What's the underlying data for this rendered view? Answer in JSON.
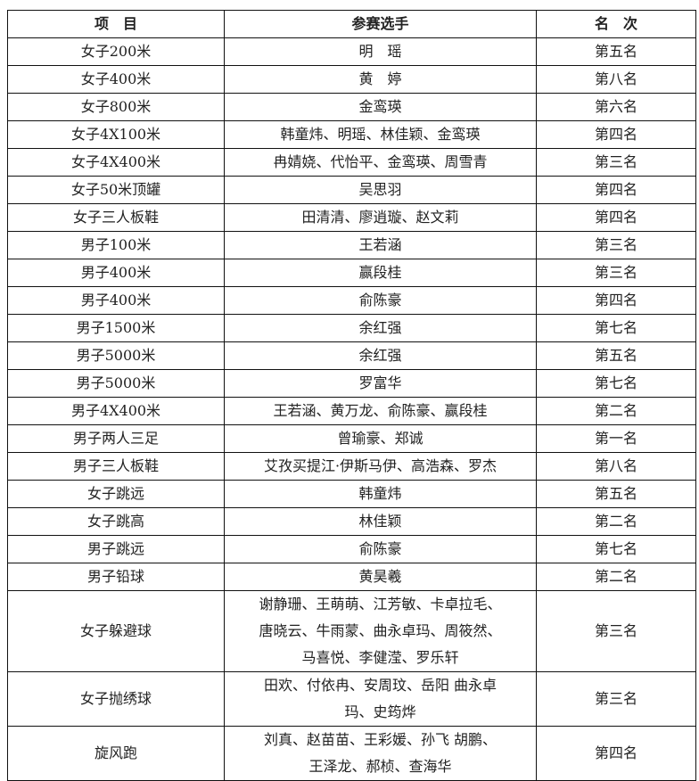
{
  "headers": [
    "项　目",
    "参赛选手",
    "名　次"
  ],
  "rows": [
    {
      "event": "女子200米",
      "players": [
        "明　瑶"
      ],
      "rank": "第五名"
    },
    {
      "event": "女子400米",
      "players": [
        "黄　婷"
      ],
      "rank": "第八名"
    },
    {
      "event": "女子800米",
      "players": [
        "金鸾瑛"
      ],
      "rank": "第六名"
    },
    {
      "event": "女子4X100米",
      "players": [
        "韩童炜、明瑶、林佳颖、金鸾瑛"
      ],
      "rank": "第四名"
    },
    {
      "event": "女子4X400米",
      "players": [
        "冉婧娆、代怡平、金鸾瑛、周雪青"
      ],
      "rank": "第三名"
    },
    {
      "event": "女子50米顶罐",
      "players": [
        "吴思羽"
      ],
      "rank": "第四名"
    },
    {
      "event": "女子三人板鞋",
      "players": [
        "田清清、廖逍璇、赵文莉"
      ],
      "rank": "第四名"
    },
    {
      "event": "男子100米",
      "players": [
        "王若涵"
      ],
      "rank": "第三名"
    },
    {
      "event": "男子400米",
      "players": [
        "赢段桂"
      ],
      "rank": "第三名"
    },
    {
      "event": "男子400米",
      "players": [
        "俞陈豪"
      ],
      "rank": "第四名"
    },
    {
      "event": "男子1500米",
      "players": [
        "余红强"
      ],
      "rank": "第七名"
    },
    {
      "event": "男子5000米",
      "players": [
        "余红强"
      ],
      "rank": "第五名"
    },
    {
      "event": "男子5000米",
      "players": [
        "罗富华"
      ],
      "rank": "第七名"
    },
    {
      "event": "男子4X400米",
      "players": [
        "王若涵、黄万龙、俞陈豪、赢段桂"
      ],
      "rank": "第二名"
    },
    {
      "event": "男子两人三足",
      "players": [
        "曾瑜豪、郑诚"
      ],
      "rank": "第一名"
    },
    {
      "event": "男子三人板鞋",
      "players": [
        "艾孜买提江·伊斯马伊、高浩森、罗杰"
      ],
      "rank": "第八名"
    },
    {
      "event": "女子跳远",
      "players": [
        "韩童炜"
      ],
      "rank": "第五名"
    },
    {
      "event": "女子跳高",
      "players": [
        "林佳颖"
      ],
      "rank": "第二名"
    },
    {
      "event": "男子跳远",
      "players": [
        "俞陈豪"
      ],
      "rank": "第七名"
    },
    {
      "event": "男子铅球",
      "players": [
        "黄昊羲"
      ],
      "rank": "第二名"
    },
    {
      "event": "女子躲避球",
      "players": [
        "谢静珊、王萌萌、江芳敏、卡卓拉毛、",
        "唐晓云、牛雨蒙、曲永卓玛、周筱然、",
        "马喜悦、李健滢、罗乐轩"
      ],
      "rank": "第三名"
    },
    {
      "event": "女子抛绣球",
      "players": [
        "田欢、付依冉、安周玟、岳阳 曲永卓",
        "玛、史筠烨"
      ],
      "rank": "第三名"
    },
    {
      "event": "旋风跑",
      "players": [
        "刘真、赵苗苗、王彩媛、孙飞 胡鹏、",
        "王泽龙、郝桢、查海华"
      ],
      "rank": "第四名"
    }
  ]
}
